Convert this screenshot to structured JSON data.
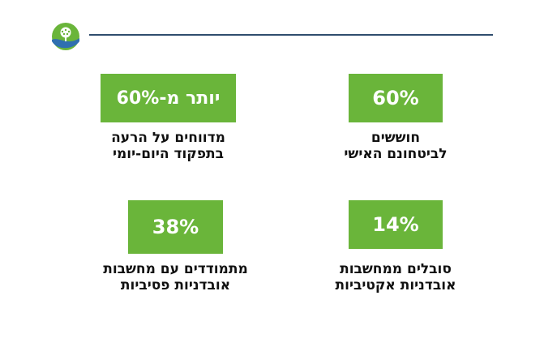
{
  "brand": {
    "logo_icon": "tree-circle-logo-icon",
    "colors": {
      "accent_green": "#6ab53a",
      "navy": "#2f4d6e",
      "blue": "#2f6fb0"
    }
  },
  "stats": [
    {
      "value": "60%",
      "line1": "חוששים",
      "line2": "לביטחונם האישי"
    },
    {
      "value": "יותר מ-60%",
      "line1": "מדווחים על הרעה",
      "line2": "בתפקוד היום-יומי"
    },
    {
      "value": "14%",
      "line1": "סובלים ממחשבות",
      "line2": "אובדניות אקטיביות"
    },
    {
      "value": "38%",
      "line1": "מתמודדים עם מחשבות",
      "line2": "אובדניות פסיביות"
    }
  ]
}
